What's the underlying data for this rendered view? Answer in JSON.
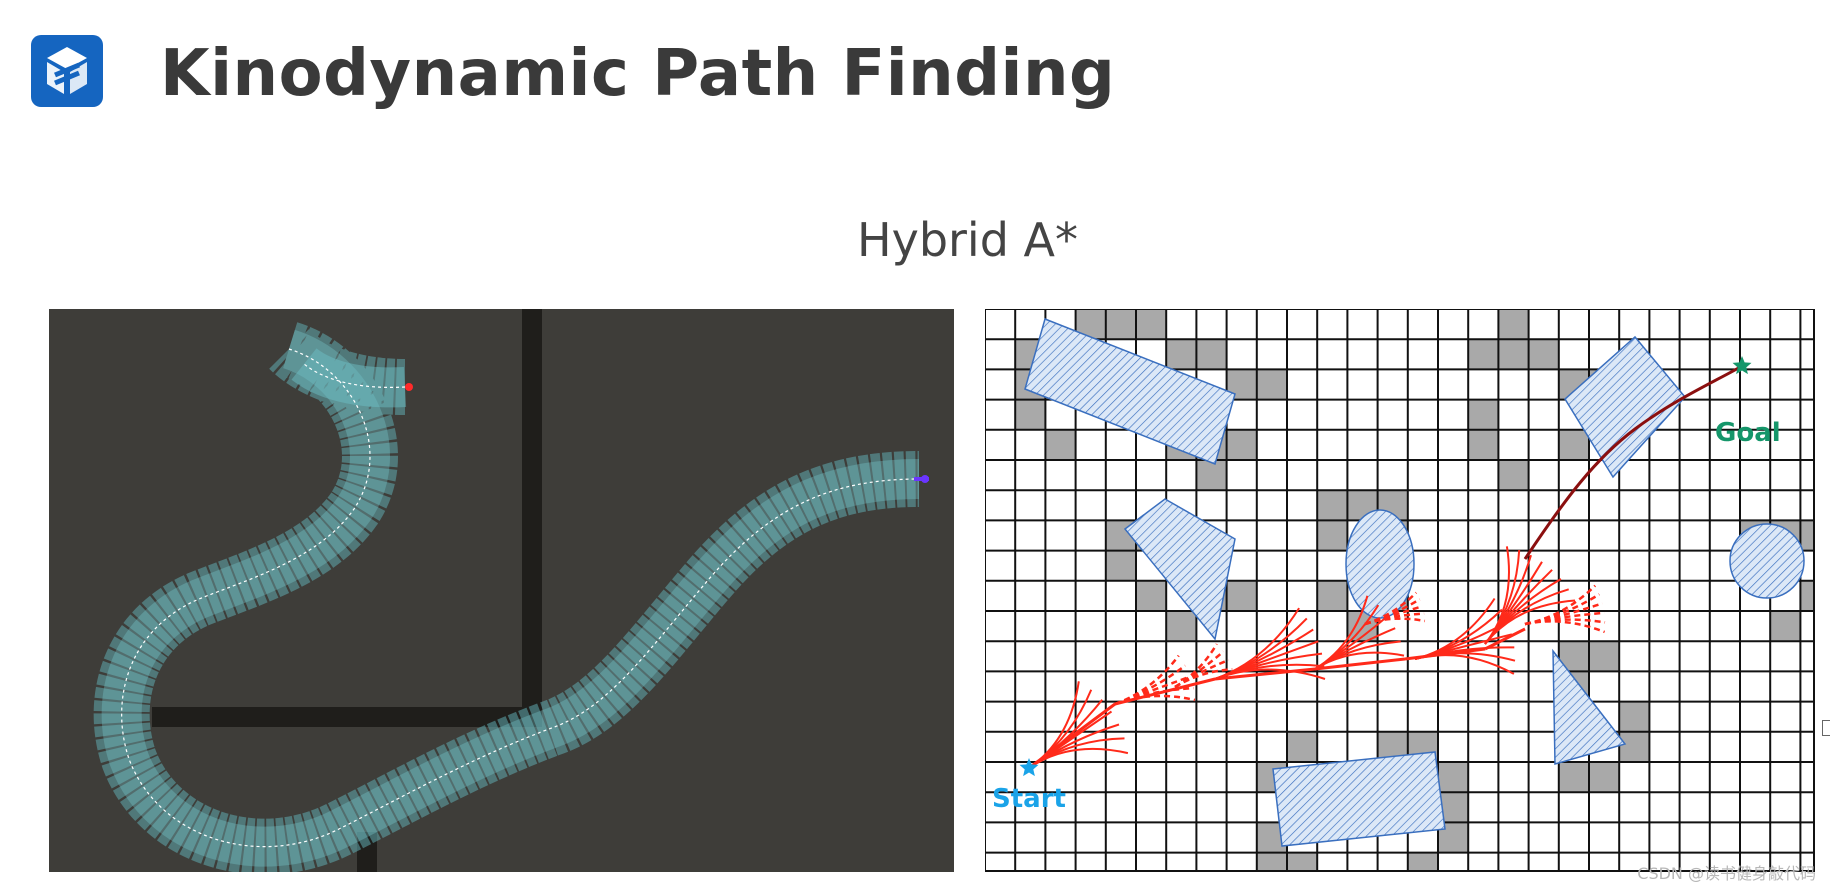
{
  "header": {
    "title": "Kinodynamic Path Finding",
    "logo_icon": "cube-logo-icon",
    "logo_color": "#1565c0"
  },
  "subtitle": "Hybrid A*",
  "left_figure": {
    "background_color": "#3e3d39",
    "wall_color": "#1f1e1b",
    "path_color": "#6fc3c9",
    "start_marker_color": "#ff2a2a",
    "end_marker_color": "#6a35ff"
  },
  "right_figure": {
    "start_label": "Start",
    "goal_label": "Goal",
    "start_color": "#1aa3e8",
    "goal_color": "#15966a",
    "expansion_color": "#ff2a1a",
    "final_path_color": "#8b0f0f",
    "occupied_cell_color": "#a9a9a9",
    "obstacle_fill_color": "#dce8f7",
    "obstacle_hatch_color": "#3a6fbf"
  },
  "watermark": "CSDN @读书健身敲代码"
}
